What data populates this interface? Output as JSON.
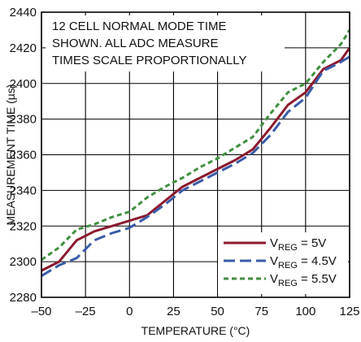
{
  "chart_data": {
    "type": "line",
    "annotation": [
      "12 CELL NORMAL MODE TIME",
      "SHOWN. ALL ADC MEASURE",
      "TIMES SCALE PROPORTIONALLY"
    ],
    "xlabel": "TEMPERATURE (°C)",
    "ylabel": "MEASUREMENT TIME (µs)",
    "xlim": [
      -50,
      125
    ],
    "ylim": [
      2280,
      2440
    ],
    "xticks": [
      -50,
      -25,
      0,
      25,
      50,
      75,
      100,
      125
    ],
    "yticks": [
      2280,
      2300,
      2320,
      2340,
      2360,
      2380,
      2400,
      2420,
      2440
    ],
    "xtick_labels": [
      "–50",
      "–25",
      "0",
      "25",
      "50",
      "75",
      "100",
      "125"
    ],
    "ytick_labels": [
      "2280",
      "2300",
      "2320",
      "2340",
      "2360",
      "2380",
      "2400",
      "2420",
      "2440"
    ],
    "grid": true,
    "legend_position": "bottom-right",
    "series": [
      {
        "name": "VREG = 5V",
        "legend_main": "V",
        "legend_sub": "REG",
        "legend_tail": " = 5V",
        "color": "#8b1a2e",
        "dash": "solid",
        "x": [
          -50,
          -40,
          -30,
          -20,
          -10,
          0,
          10,
          20,
          30,
          40,
          50,
          60,
          70,
          80,
          90,
          100,
          110,
          120,
          125
        ],
        "y": [
          2295,
          2300,
          2312,
          2317,
          2320,
          2323,
          2326,
          2334,
          2342,
          2347,
          2352,
          2357,
          2363,
          2375,
          2388,
          2395,
          2408,
          2413,
          2420
        ]
      },
      {
        "name": "VREG = 4.5V",
        "legend_main": "V",
        "legend_sub": "REG",
        "legend_tail": " = 4.5V",
        "color": "#3a5ca8",
        "dash": "long-dash",
        "x": [
          -50,
          -40,
          -30,
          -20,
          -10,
          0,
          10,
          20,
          30,
          40,
          50,
          60,
          70,
          80,
          90,
          100,
          110,
          120,
          125
        ],
        "y": [
          2292,
          2298,
          2302,
          2312,
          2316,
          2319,
          2325,
          2332,
          2340,
          2345,
          2350,
          2355,
          2361,
          2371,
          2384,
          2392,
          2407,
          2412,
          2415
        ]
      },
      {
        "name": "VREG = 5.5V",
        "legend_main": "V",
        "legend_sub": "REG",
        "legend_tail": " = 5.5V",
        "color": "#3f8f3f",
        "dash": "short-dash",
        "x": [
          -50,
          -40,
          -30,
          -20,
          -10,
          0,
          10,
          20,
          30,
          40,
          50,
          60,
          70,
          80,
          90,
          100,
          110,
          120,
          125
        ],
        "y": [
          2301,
          2308,
          2318,
          2321,
          2325,
          2328,
          2336,
          2342,
          2347,
          2353,
          2358,
          2364,
          2370,
          2383,
          2395,
          2400,
          2412,
          2422,
          2430
        ]
      }
    ]
  }
}
